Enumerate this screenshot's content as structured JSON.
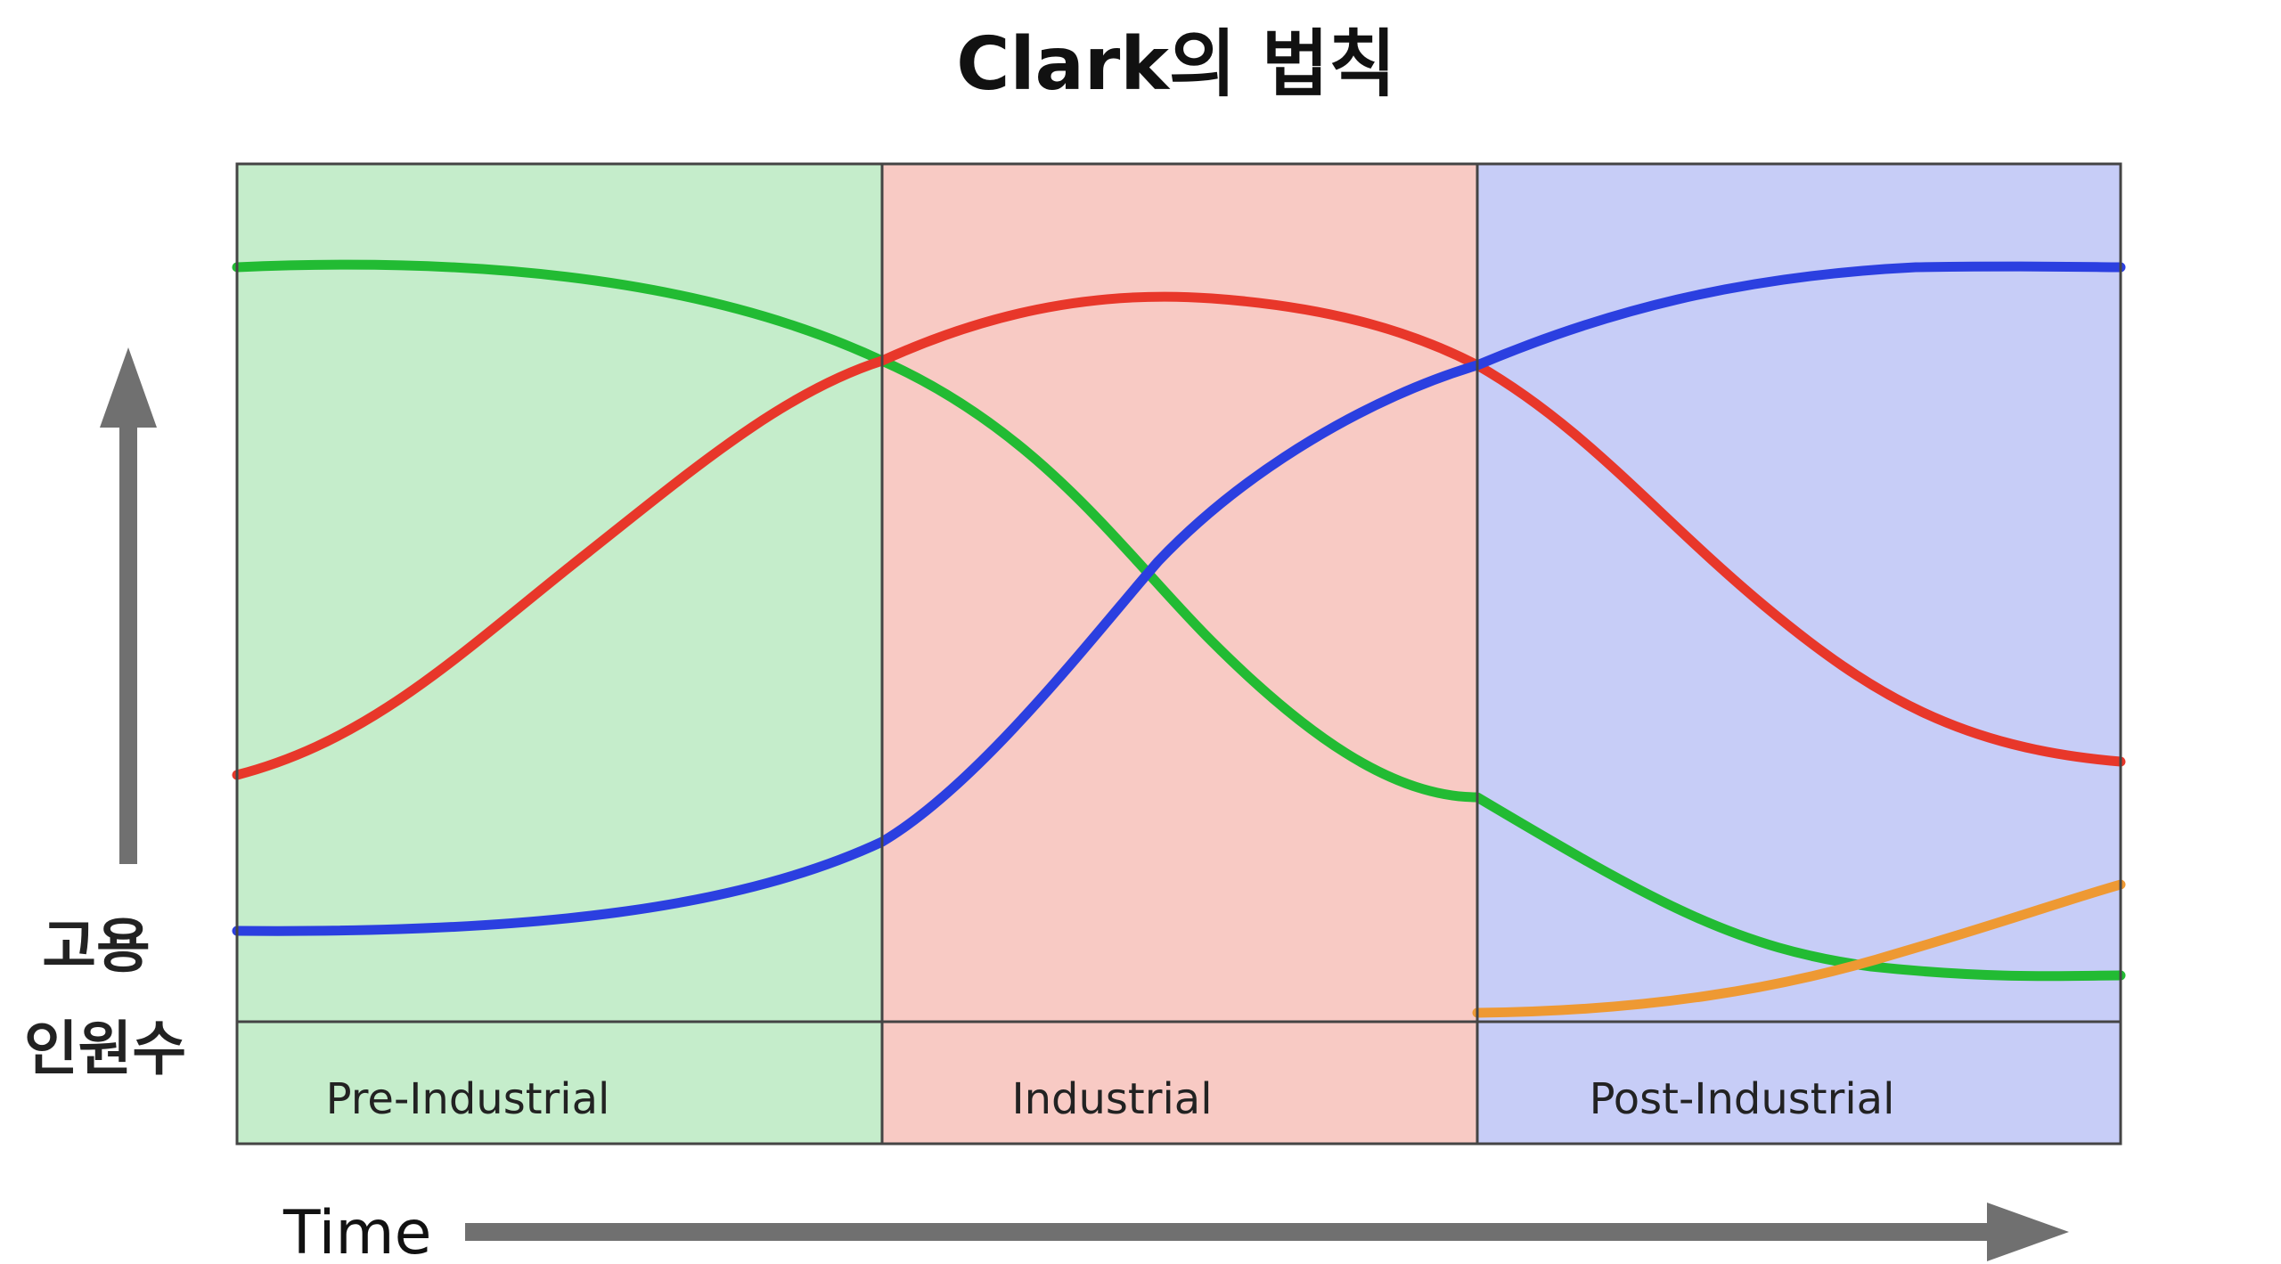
{
  "title": "Clark의 법칙",
  "y_axis_label": [
    "고용",
    "인원수"
  ],
  "x_axis_label": "Time",
  "eras": [
    {
      "label": "Pre-Industrial",
      "fill": "#c5edcb"
    },
    {
      "label": "Industrial",
      "fill": "#f8cac4"
    },
    {
      "label": "Post-Industrial",
      "fill": "#c7cdf7"
    }
  ],
  "colors": {
    "green_curve": "#22bb33",
    "red_curve": "#e8372a",
    "blue_curve": "#2b3fe0",
    "orange_curve": "#ee9933",
    "arrow": "#707070",
    "border": "#444444"
  }
}
